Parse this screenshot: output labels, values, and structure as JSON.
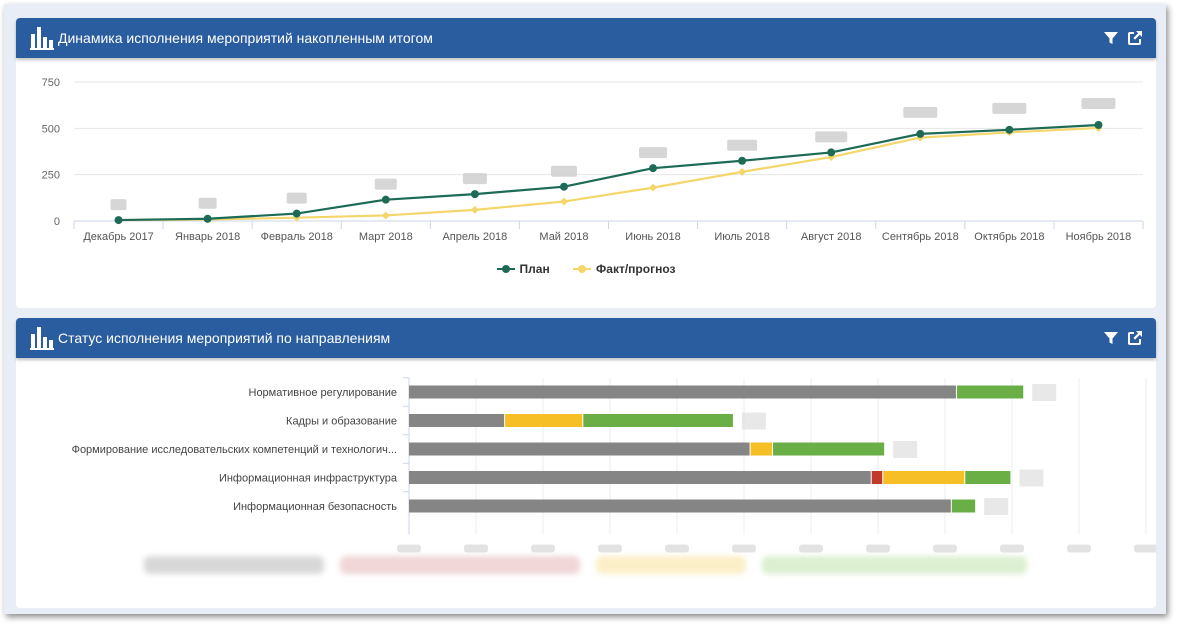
{
  "panel1": {
    "title": "Динамика исполнения мероприятий накопленным итогом",
    "icons": {
      "chart": "bar-chart-icon",
      "filter": "filter-icon",
      "open": "external-link-icon"
    }
  },
  "panel2": {
    "title": "Статус исполнения мероприятий по направлениям",
    "icons": {
      "chart": "bar-chart-icon",
      "filter": "filter-icon",
      "open": "external-link-icon"
    }
  },
  "colors": {
    "header": "#2a5d9f",
    "plan": "#1d6b56",
    "fact": "#f5d66b",
    "gray": "#858585",
    "red": "#c0392b",
    "yellow": "#f5bf25",
    "green": "#6aaf45"
  },
  "chart_data": [
    {
      "type": "line",
      "categories": [
        "Декабрь 2017",
        "Январь 2018",
        "Февраль 2018",
        "Март 2018",
        "Апрель 2018",
        "Май 2018",
        "Июнь 2018",
        "Июль 2018",
        "Август 2018",
        "Сентябрь 2018",
        "Октябрь 2018",
        "Ноябрь 2018"
      ],
      "series": [
        {
          "name": "План",
          "values": [
            5,
            12,
            40,
            115,
            145,
            185,
            285,
            325,
            370,
            470,
            492,
            518
          ]
        },
        {
          "name": "Факт/прогноз",
          "values": [
            5,
            8,
            18,
            30,
            60,
            105,
            180,
            265,
            345,
            450,
            478,
            502
          ]
        }
      ],
      "ylim": [
        0,
        750
      ],
      "yticks": [
        "0",
        "250",
        "500",
        "750"
      ],
      "grid": true,
      "legend": "bottom"
    },
    {
      "type": "bar",
      "orientation": "horizontal",
      "stacked": true,
      "categories": [
        "Нормативное регулирование",
        "Кадры и образование",
        "Формирование исследовательских компетенций и технологич...",
        "Информационная инфраструктура",
        "Информационная безопасность"
      ],
      "segments": [
        [
          {
            "status": "gray",
            "value": 85.5
          },
          {
            "status": "green",
            "value": 10.5
          }
        ],
        [
          {
            "status": "gray",
            "value": 15
          },
          {
            "status": "yellow",
            "value": 12.2
          },
          {
            "status": "green",
            "value": 23.5
          }
        ],
        [
          {
            "status": "gray",
            "value": 53.3
          },
          {
            "status": "yellow",
            "value": 3.5
          },
          {
            "status": "green",
            "value": 17.5
          }
        ],
        [
          {
            "status": "gray",
            "value": 72.2
          },
          {
            "status": "red",
            "value": 1.8
          },
          {
            "status": "yellow",
            "value": 12.8
          },
          {
            "status": "green",
            "value": 7.2
          }
        ],
        [
          {
            "status": "gray",
            "value": 84.7
          },
          {
            "status": "green",
            "value": 3.8
          }
        ]
      ],
      "xlim": [
        0,
        115
      ],
      "legend": "bottom"
    }
  ]
}
